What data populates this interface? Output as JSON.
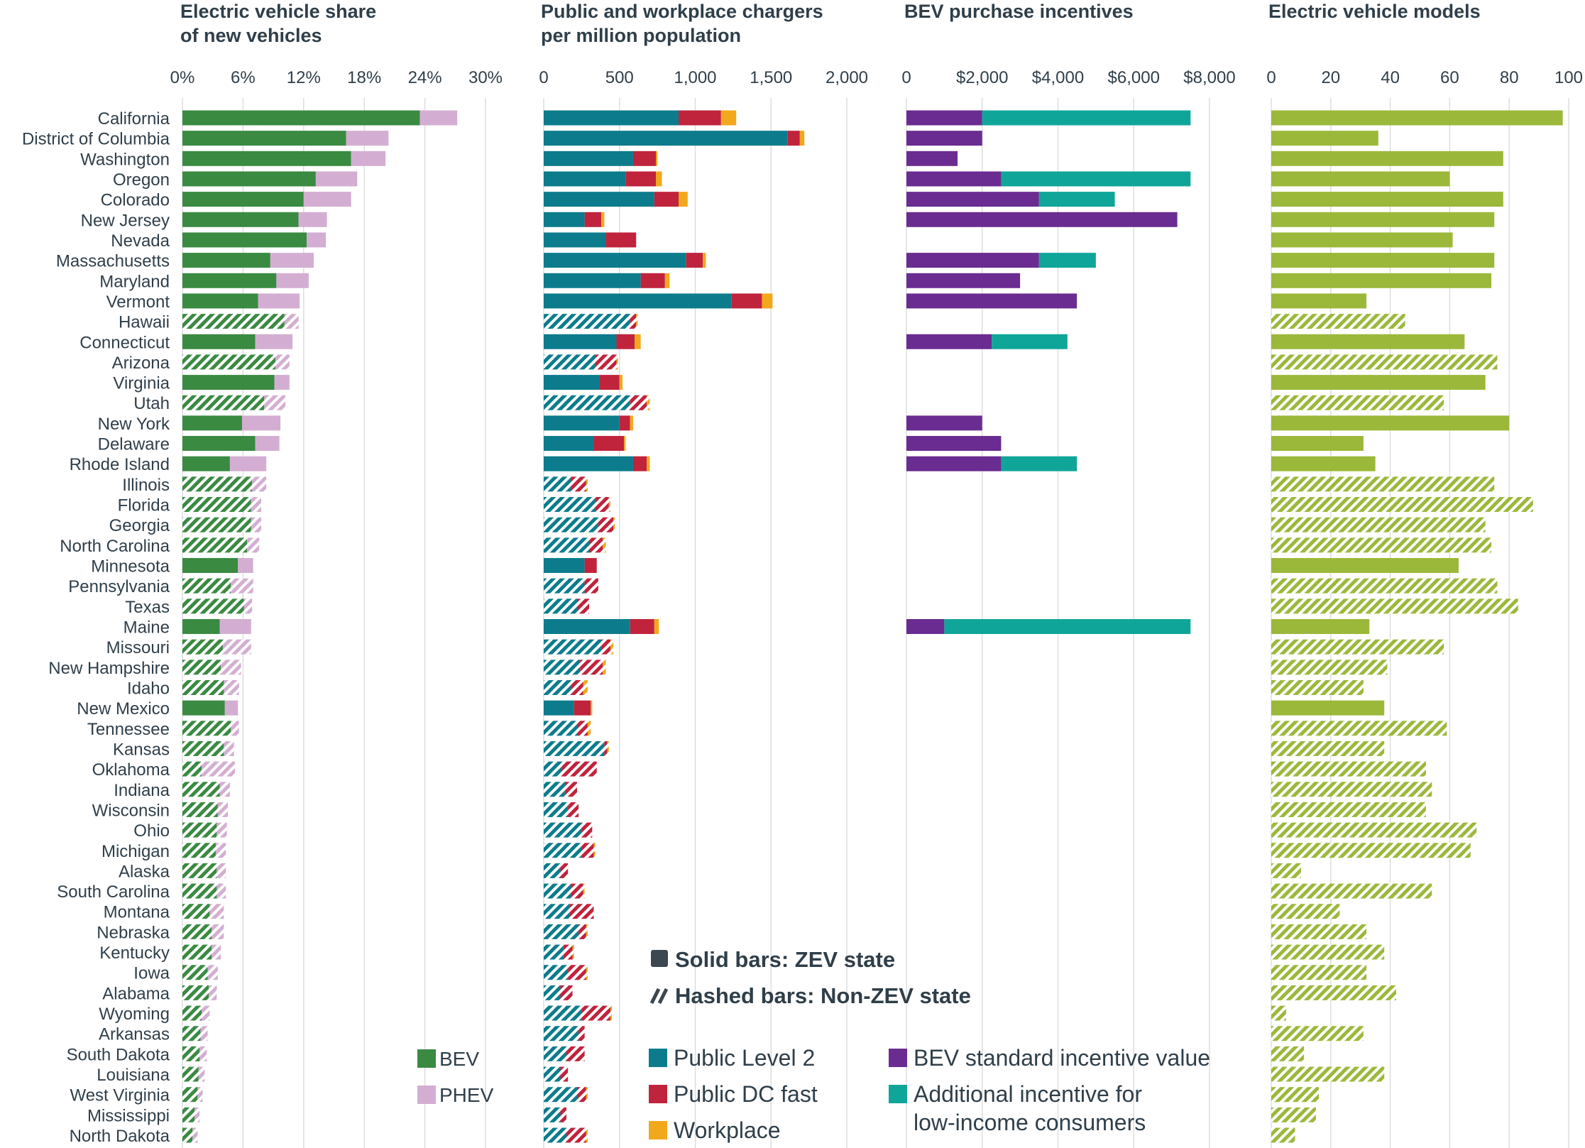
{
  "states": [
    "California",
    "District of Columbia",
    "Washington",
    "Oregon",
    "Colorado",
    "New Jersey",
    "Nevada",
    "Massachusetts",
    "Maryland",
    "Vermont",
    "Hawaii",
    "Connecticut",
    "Arizona",
    "Virginia",
    "Utah",
    "New York",
    "Delaware",
    "Rhode Island",
    "Illinois",
    "Florida",
    "Georgia",
    "North Carolina",
    "Minnesota",
    "Pennsylvania",
    "Texas",
    "Maine",
    "Missouri",
    "New Hampshire",
    "Idaho",
    "New Mexico",
    "Tennessee",
    "Kansas",
    "Oklahoma",
    "Indiana",
    "Wisconsin",
    "Ohio",
    "Michigan",
    "Alaska",
    "South Carolina",
    "Montana",
    "Nebraska",
    "Kentucky",
    "Iowa",
    "Alabama",
    "Wyoming",
    "Arkansas",
    "South Dakota",
    "Louisiana",
    "West Virginia",
    "Mississippi",
    "North Dakota"
  ],
  "zev": [
    true,
    true,
    true,
    true,
    true,
    true,
    true,
    true,
    true,
    true,
    false,
    true,
    false,
    true,
    false,
    true,
    true,
    true,
    false,
    false,
    false,
    false,
    true,
    false,
    false,
    true,
    false,
    false,
    false,
    true,
    false,
    false,
    false,
    false,
    false,
    false,
    false,
    false,
    false,
    false,
    false,
    false,
    false,
    false,
    false,
    false,
    false,
    false,
    false,
    false,
    false
  ],
  "chart_data": [
    {
      "type": "bar",
      "title": "Electric vehicle share of new vehicles",
      "title_lines": [
        "Electric vehicle share",
        "of new vehicles"
      ],
      "xlim": [
        0,
        30
      ],
      "ticks": [
        "0%",
        "6%",
        "12%",
        "18%",
        "24%",
        "30%"
      ],
      "tick_values": [
        0,
        6,
        12,
        18,
        24,
        30
      ],
      "series": [
        {
          "name": "BEV",
          "color": "#3a8a42",
          "values": [
            23.5,
            16.2,
            16.7,
            13.2,
            12.0,
            11.5,
            12.3,
            8.7,
            9.3,
            7.5,
            10.1,
            7.2,
            9.2,
            9.1,
            8.1,
            5.9,
            7.2,
            4.7,
            6.9,
            6.8,
            6.8,
            6.4,
            5.5,
            4.8,
            6.1,
            3.7,
            4.0,
            3.8,
            4.1,
            4.2,
            4.8,
            4.1,
            1.9,
            3.7,
            3.5,
            3.4,
            3.3,
            3.4,
            3.4,
            2.7,
            2.9,
            2.9,
            2.5,
            2.6,
            1.9,
            1.8,
            1.7,
            1.6,
            1.5,
            1.2,
            1.0
          ]
        },
        {
          "name": "PHEV",
          "color": "#d4aed2",
          "values": [
            3.7,
            4.2,
            3.4,
            4.1,
            4.7,
            2.8,
            1.9,
            4.3,
            3.2,
            4.1,
            1.4,
            3.7,
            1.4,
            1.5,
            2.1,
            3.8,
            2.4,
            3.6,
            1.4,
            1.0,
            1.0,
            1.2,
            1.5,
            2.2,
            0.8,
            3.1,
            2.8,
            2.0,
            1.5,
            1.3,
            0.8,
            1.0,
            3.3,
            1.0,
            1.0,
            1.0,
            1.0,
            0.9,
            0.9,
            1.4,
            1.2,
            0.9,
            1.0,
            0.8,
            0.8,
            0.7,
            0.7,
            0.6,
            0.5,
            0.5,
            0.5
          ]
        }
      ]
    },
    {
      "type": "bar",
      "title": "Public and workplace chargers per million population",
      "title_lines": [
        "Public and workplace chargers",
        "per million population"
      ],
      "xlim": [
        0,
        2000
      ],
      "ticks": [
        "0",
        "500",
        "1,000",
        "1,500",
        "2,000"
      ],
      "tick_values": [
        0,
        500,
        1000,
        1500,
        2000
      ],
      "series": [
        {
          "name": "Public Level 2",
          "color": "#0c7c8c",
          "values": [
            890,
            1610,
            590,
            540,
            730,
            270,
            410,
            940,
            640,
            1240,
            570,
            480,
            340,
            370,
            570,
            500,
            330,
            590,
            180,
            340,
            360,
            300,
            270,
            270,
            220,
            570,
            380,
            240,
            180,
            200,
            220,
            400,
            120,
            140,
            160,
            250,
            250,
            110,
            180,
            170,
            230,
            130,
            160,
            110,
            250,
            230,
            150,
            110,
            220,
            110,
            150
          ]
        },
        {
          "name": "Public DC fast",
          "color": "#c0233c",
          "values": [
            280,
            80,
            150,
            200,
            160,
            110,
            200,
            110,
            160,
            200,
            40,
            120,
            140,
            130,
            110,
            70,
            200,
            90,
            100,
            90,
            100,
            90,
            80,
            90,
            80,
            160,
            60,
            150,
            80,
            110,
            70,
            20,
            230,
            80,
            70,
            70,
            80,
            50,
            80,
            160,
            50,
            60,
            120,
            80,
            190,
            40,
            120,
            50,
            60,
            40,
            130
          ]
        },
        {
          "name": "Workplace",
          "color": "#f2a81d",
          "values": [
            100,
            30,
            10,
            40,
            60,
            20,
            0,
            20,
            30,
            70,
            10,
            40,
            10,
            20,
            20,
            20,
            10,
            20,
            10,
            10,
            10,
            20,
            0,
            0,
            0,
            30,
            20,
            20,
            30,
            10,
            20,
            10,
            0,
            0,
            0,
            0,
            10,
            0,
            10,
            0,
            10,
            10,
            10,
            0,
            10,
            0,
            0,
            0,
            10,
            0,
            10
          ]
        }
      ]
    },
    {
      "type": "bar",
      "title": "BEV purchase incentives",
      "xlim": [
        0,
        8000
      ],
      "ticks": [
        "0",
        "$2,000",
        "$4,000",
        "$6,000",
        "$8,000"
      ],
      "tick_values": [
        0,
        2000,
        4000,
        6000,
        8000
      ],
      "series": [
        {
          "name": "BEV standard incentive value",
          "color": "#6a2c91",
          "values": [
            2000,
            2000,
            1350,
            2500,
            3500,
            7150,
            0,
            3500,
            3000,
            4500,
            0,
            2250,
            0,
            0,
            0,
            2000,
            2500,
            2500,
            0,
            0,
            0,
            0,
            0,
            0,
            0,
            1000,
            0,
            0,
            0,
            0,
            0,
            0,
            0,
            0,
            0,
            0,
            0,
            0,
            0,
            0,
            0,
            0,
            0,
            0,
            0,
            0,
            0,
            0,
            0,
            0,
            0
          ]
        },
        {
          "name": "Additional incentive for low-income consumers",
          "color": "#0fa699",
          "values": [
            5500,
            0,
            0,
            5000,
            2000,
            0,
            0,
            1500,
            0,
            0,
            0,
            2000,
            0,
            0,
            0,
            0,
            0,
            2000,
            0,
            0,
            0,
            0,
            0,
            0,
            0,
            6500,
            0,
            0,
            0,
            0,
            0,
            0,
            0,
            0,
            0,
            0,
            0,
            0,
            0,
            0,
            0,
            0,
            0,
            0,
            0,
            0,
            0,
            0,
            0,
            0,
            0
          ]
        }
      ]
    },
    {
      "type": "bar",
      "title": "Electric vehicle models",
      "xlim": [
        0,
        100
      ],
      "ticks": [
        "0",
        "20",
        "40",
        "60",
        "80",
        "100"
      ],
      "tick_values": [
        0,
        20,
        40,
        60,
        80,
        100
      ],
      "series": [
        {
          "name": "Electric vehicle models",
          "color": "#9cb83a",
          "values": [
            98,
            36,
            78,
            60,
            78,
            75,
            61,
            75,
            74,
            32,
            45,
            65,
            76,
            72,
            58,
            80,
            31,
            35,
            75,
            88,
            72,
            74,
            63,
            76,
            83,
            33,
            58,
            39,
            31,
            38,
            59,
            38,
            52,
            54,
            52,
            69,
            67,
            10,
            54,
            23,
            32,
            38,
            32,
            42,
            5,
            31,
            11,
            38,
            16,
            15,
            8
          ]
        }
      ]
    }
  ],
  "legend": {
    "solid_label": "Solid bars: ZEV state",
    "hashed_label": "Hashed bars: Non-ZEV state",
    "bev_label": "BEV",
    "phev_label": "PHEV",
    "level2_label": "Public Level 2",
    "dcfast_label": "Public DC fast",
    "workplace_label": "Workplace",
    "bev_standard_label": "BEV standard incentive value",
    "low_income_label_line1": "Additional incentive for",
    "low_income_label_line2": "low-income consumers"
  }
}
